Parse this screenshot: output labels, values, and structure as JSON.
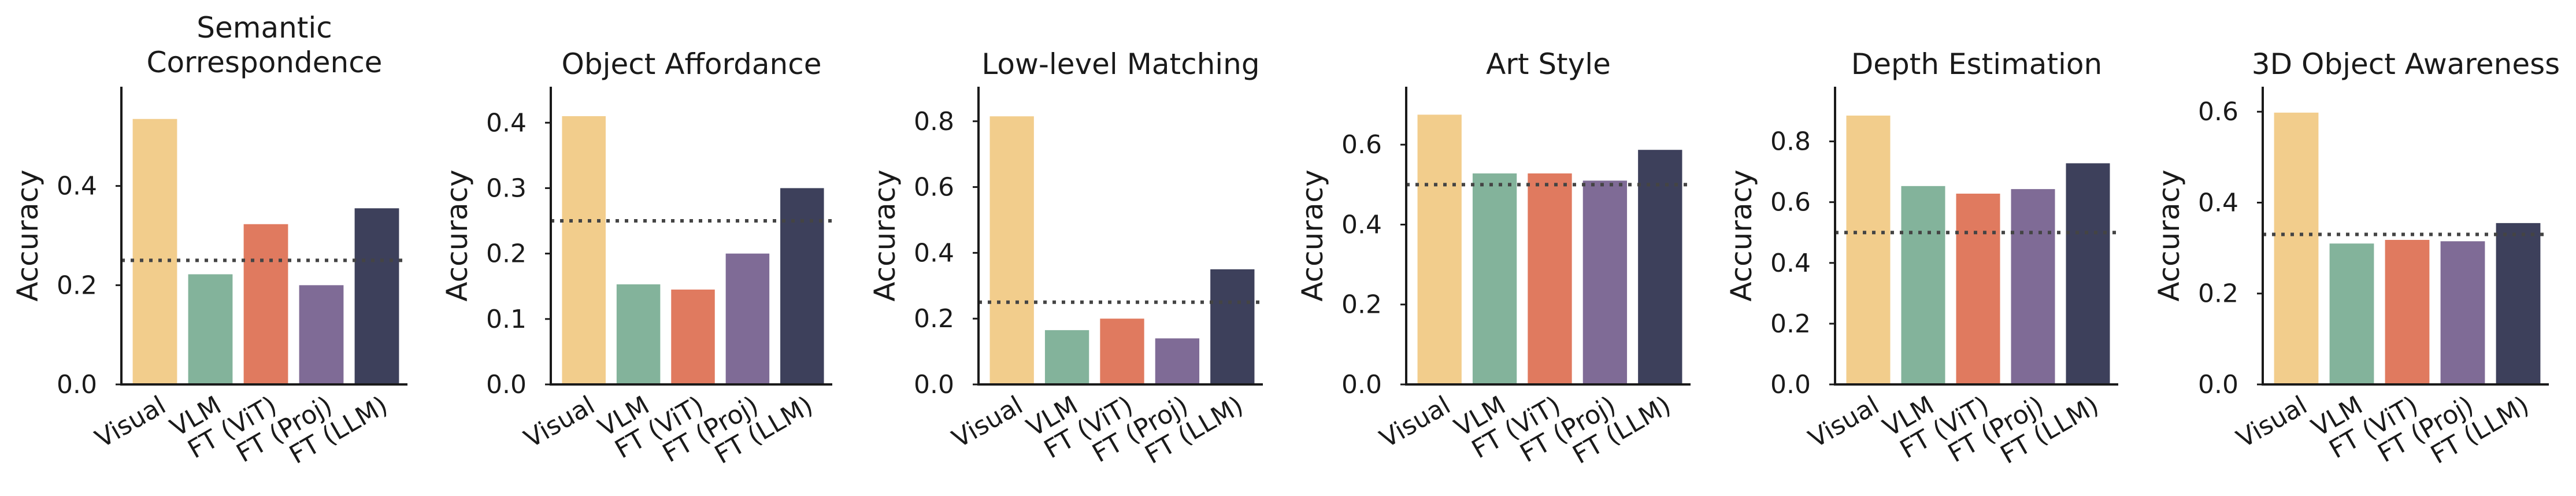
{
  "colors": {
    "Visual": "#f2cd8c",
    "VLM": "#83b39b",
    "FT (ViT)": "#e07a5f",
    "FT (Proj)": "#7f6b96",
    "FT (LLM)": "#3d405b",
    "chance_line": "#444444"
  },
  "chart_data": [
    {
      "type": "bar",
      "title": [
        "Semantic",
        "Correspondence"
      ],
      "ylabel": "Accuracy",
      "categories": [
        "Visual",
        "VLM",
        "FT (ViT)",
        "FT (Proj)",
        "FT (LLM)"
      ],
      "values": [
        0.535,
        0.222,
        0.323,
        0.2,
        0.355
      ],
      "chance_line": 0.25,
      "yticks": [
        0.0,
        0.2,
        0.4
      ],
      "yticklabels": [
        "0.0",
        "0.2",
        "0.4"
      ],
      "ylim": [
        0,
        0.6
      ],
      "grid": false
    },
    {
      "type": "bar",
      "title": [
        "Object Affordance"
      ],
      "ylabel": "Accuracy",
      "categories": [
        "Visual",
        "VLM",
        "FT (ViT)",
        "FT (Proj)",
        "FT (LLM)"
      ],
      "values": [
        0.41,
        0.153,
        0.145,
        0.2,
        0.3
      ],
      "chance_line": 0.25,
      "yticks": [
        0.0,
        0.1,
        0.2,
        0.3,
        0.4
      ],
      "yticklabels": [
        "0.0",
        "0.1",
        "0.2",
        "0.3",
        "0.4"
      ],
      "ylim": [
        0,
        0.455
      ],
      "grid": false
    },
    {
      "type": "bar",
      "title": [
        "Low-level Matching"
      ],
      "ylabel": "Accuracy",
      "categories": [
        "Visual",
        "VLM",
        "FT (ViT)",
        "FT (Proj)",
        "FT (LLM)"
      ],
      "values": [
        0.815,
        0.165,
        0.2,
        0.14,
        0.35
      ],
      "chance_line": 0.25,
      "yticks": [
        0.0,
        0.2,
        0.4,
        0.6,
        0.8
      ],
      "yticklabels": [
        "0.0",
        "0.2",
        "0.4",
        "0.6",
        "0.8"
      ],
      "ylim": [
        0,
        0.905
      ],
      "grid": false
    },
    {
      "type": "bar",
      "title": [
        "Art Style"
      ],
      "ylabel": "Accuracy",
      "categories": [
        "Visual",
        "VLM",
        "FT (ViT)",
        "FT (Proj)",
        "FT (LLM)"
      ],
      "values": [
        0.675,
        0.528,
        0.528,
        0.51,
        0.587
      ],
      "chance_line": 0.5,
      "yticks": [
        0.0,
        0.2,
        0.4,
        0.6
      ],
      "yticklabels": [
        "0.0",
        "0.2",
        "0.4",
        "0.6"
      ],
      "ylim": [
        0,
        0.745
      ],
      "grid": false
    },
    {
      "type": "bar",
      "title": [
        "Depth Estimation"
      ],
      "ylabel": "Accuracy",
      "categories": [
        "Visual",
        "VLM",
        "FT (ViT)",
        "FT (Proj)",
        "FT (LLM)"
      ],
      "values": [
        0.885,
        0.653,
        0.628,
        0.643,
        0.728
      ],
      "chance_line": 0.5,
      "yticks": [
        0.0,
        0.2,
        0.4,
        0.6,
        0.8
      ],
      "yticklabels": [
        "0.0",
        "0.2",
        "0.4",
        "0.6",
        "0.8"
      ],
      "ylim": [
        0,
        0.98
      ],
      "grid": false
    },
    {
      "type": "bar",
      "title": [
        "3D Object Awareness"
      ],
      "ylabel": "Accuracy",
      "categories": [
        "Visual",
        "VLM",
        "FT (ViT)",
        "FT (Proj)",
        "FT (LLM)"
      ],
      "values": [
        0.598,
        0.31,
        0.318,
        0.315,
        0.355
      ],
      "chance_line": 0.33,
      "yticks": [
        0.0,
        0.2,
        0.4,
        0.6
      ],
      "yticklabels": [
        "0.0",
        "0.2",
        "0.4",
        "0.6"
      ],
      "ylim": [
        0,
        0.655
      ],
      "grid": false
    }
  ]
}
